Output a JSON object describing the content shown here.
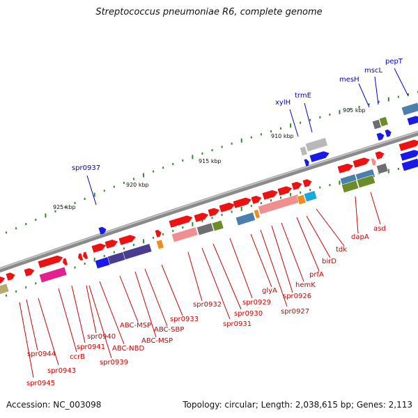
{
  "title": "Streptococcus pneumoniae R6, complete genome",
  "accession": "Accession: NC_003098",
  "topology": "Topology: circular; Length: 2,038,615 bp; Genes: 2,113",
  "kbp_labels": [
    "905 kbp",
    "910 kbp",
    "915 kbp",
    "920 kbp",
    "925 kbp"
  ],
  "blue_labels": [
    "spr0937",
    "xylH",
    "trmE",
    "mesH",
    "mscL",
    "pepT"
  ],
  "red_labels": [
    "spr0945",
    "spr0944",
    "spr0943",
    "ccrB",
    "spr0941",
    "spr0940",
    "spr0939",
    "ABC-NBD",
    "ABC-MSP",
    "ABC-MSP",
    "ABC-SBP",
    "spr0933",
    "spr0932",
    "spr0931",
    "spr0930",
    "spr0929",
    "glyA",
    "spr0927",
    "spr0926",
    "hemK",
    "prfA",
    "birD",
    "tdk",
    "dapA",
    "asd"
  ],
  "colors": {
    "gene_red": "#ee1111",
    "gene_blue": "#1a1ae6",
    "label_red": "#cc0000",
    "label_blue": "#0000cc",
    "backbone": "#8a8a8a",
    "tick_green": "#2e8b2e",
    "cog_purple": "#4a3d8f",
    "cog_pink": "#ef8f8f",
    "cog_magenta": "#e3208f",
    "cog_steel": "#4a7fae",
    "cog_olive": "#6c8c28",
    "cog_gray": "#6e6e6e",
    "cog_orange": "#f08c1e",
    "cog_cyan": "#1aa9de",
    "cog_khaki": "#b7ab6e",
    "cog_silver": "#b9b9b9"
  }
}
